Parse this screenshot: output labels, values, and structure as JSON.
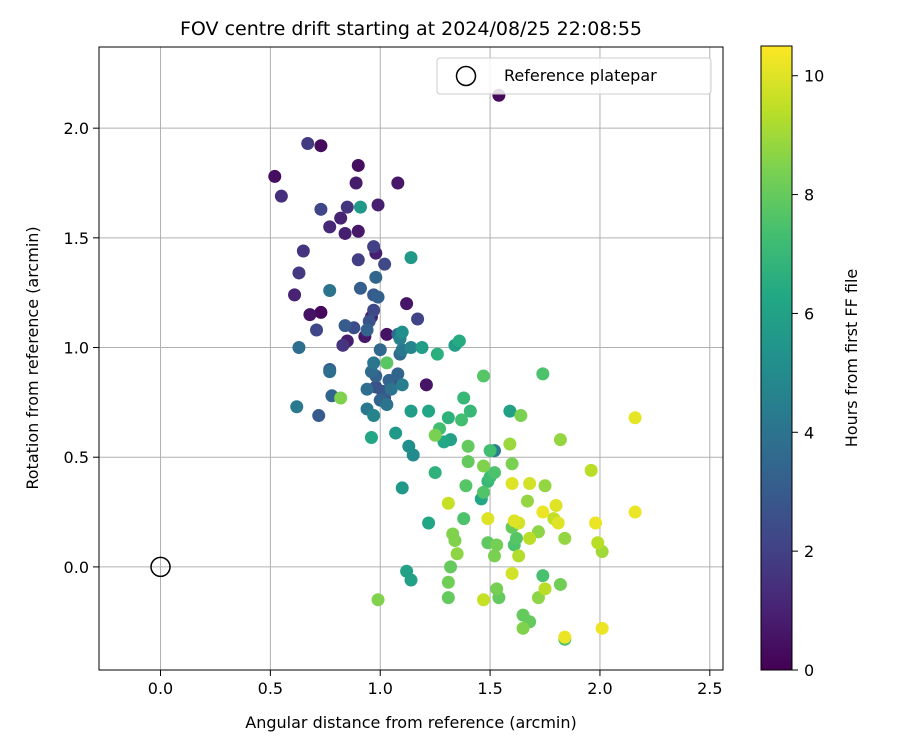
{
  "chart_data": {
    "type": "scatter",
    "title": "FOV centre drift starting at 2024/08/25 22:08:55",
    "xlabel": "Angular distance from reference (arcmin)",
    "ylabel": "Rotation from reference (arcmin)",
    "xlim": [
      -0.28,
      2.56
    ],
    "ylim": [
      -0.47,
      2.37
    ],
    "xticks": [
      0.0,
      0.5,
      1.0,
      1.5,
      2.0,
      2.5
    ],
    "xtick_labels": [
      "0.0",
      "0.5",
      "1.0",
      "1.5",
      "2.0",
      "2.5"
    ],
    "yticks": [
      0.0,
      0.5,
      1.0,
      1.5,
      2.0
    ],
    "ytick_labels": [
      "0.0",
      "0.5",
      "1.0",
      "1.5",
      "2.0"
    ],
    "grid": true,
    "legend": {
      "placement": "top-right",
      "entries": [
        "Reference platepar"
      ]
    },
    "reference_point": {
      "x": 0.0,
      "y": 0.0,
      "label": "Reference platepar"
    },
    "colorbar": {
      "label": "Hours from first FF file",
      "colormap": "viridis",
      "range": [
        0,
        10.5
      ],
      "ticks": [
        0,
        2,
        4,
        6,
        8,
        10
      ],
      "tick_labels": [
        "0",
        "2",
        "4",
        "6",
        "8",
        "10"
      ]
    },
    "points": [
      {
        "x": 0.52,
        "y": 1.78,
        "c": 0.4
      },
      {
        "x": 0.55,
        "y": 1.69,
        "c": 1.4
      },
      {
        "x": 0.67,
        "y": 1.93,
        "c": 1.8
      },
      {
        "x": 0.73,
        "y": 1.92,
        "c": 0.3
      },
      {
        "x": 0.9,
        "y": 1.83,
        "c": 0.4
      },
      {
        "x": 0.89,
        "y": 1.75,
        "c": 0.8
      },
      {
        "x": 1.08,
        "y": 1.75,
        "c": 0.7
      },
      {
        "x": 0.73,
        "y": 1.63,
        "c": 2.2
      },
      {
        "x": 0.85,
        "y": 1.64,
        "c": 1.6
      },
      {
        "x": 0.91,
        "y": 1.64,
        "c": 5.6
      },
      {
        "x": 0.99,
        "y": 1.65,
        "c": 0.9
      },
      {
        "x": 0.82,
        "y": 1.59,
        "c": 1.0
      },
      {
        "x": 0.77,
        "y": 1.55,
        "c": 1.2
      },
      {
        "x": 0.84,
        "y": 1.52,
        "c": 0.9
      },
      {
        "x": 0.9,
        "y": 1.53,
        "c": 0.7
      },
      {
        "x": 0.97,
        "y": 1.46,
        "c": 2.0
      },
      {
        "x": 0.98,
        "y": 1.43,
        "c": 0.9
      },
      {
        "x": 1.02,
        "y": 1.38,
        "c": 2.3
      },
      {
        "x": 1.14,
        "y": 1.41,
        "c": 5.6
      },
      {
        "x": 0.65,
        "y": 1.44,
        "c": 1.6
      },
      {
        "x": 0.9,
        "y": 1.4,
        "c": 1.9
      },
      {
        "x": 0.63,
        "y": 1.34,
        "c": 1.7
      },
      {
        "x": 0.98,
        "y": 1.32,
        "c": 3.5
      },
      {
        "x": 0.91,
        "y": 1.27,
        "c": 3.1
      },
      {
        "x": 0.77,
        "y": 1.26,
        "c": 4.0
      },
      {
        "x": 0.61,
        "y": 1.24,
        "c": 1.0
      },
      {
        "x": 0.97,
        "y": 1.24,
        "c": 3.0
      },
      {
        "x": 0.99,
        "y": 1.23,
        "c": 3.2
      },
      {
        "x": 0.73,
        "y": 1.16,
        "c": 0.2
      },
      {
        "x": 0.68,
        "y": 1.15,
        "c": 0.5
      },
      {
        "x": 0.97,
        "y": 1.17,
        "c": 2.3
      },
      {
        "x": 1.12,
        "y": 1.2,
        "c": 0.6
      },
      {
        "x": 0.96,
        "y": 1.14,
        "c": 0.8
      },
      {
        "x": 1.17,
        "y": 1.13,
        "c": 2.1
      },
      {
        "x": 0.71,
        "y": 1.08,
        "c": 2.2
      },
      {
        "x": 0.84,
        "y": 1.1,
        "c": 3.0
      },
      {
        "x": 0.88,
        "y": 1.09,
        "c": 2.5
      },
      {
        "x": 0.93,
        "y": 1.05,
        "c": 0.7
      },
      {
        "x": 0.94,
        "y": 1.08,
        "c": 3.3
      },
      {
        "x": 1.03,
        "y": 1.06,
        "c": 0.5
      },
      {
        "x": 1.08,
        "y": 1.06,
        "c": 3.7
      },
      {
        "x": 1.1,
        "y": 1.07,
        "c": 5.2
      },
      {
        "x": 1.09,
        "y": 1.04,
        "c": 4.6
      },
      {
        "x": 0.85,
        "y": 1.03,
        "c": 0.8
      },
      {
        "x": 0.83,
        "y": 1.01,
        "c": 1.6
      },
      {
        "x": 0.63,
        "y": 1.0,
        "c": 3.8
      },
      {
        "x": 1.14,
        "y": 1.0,
        "c": 4.8
      },
      {
        "x": 1.19,
        "y": 1.0,
        "c": 5.8
      },
      {
        "x": 1.09,
        "y": 0.97,
        "c": 3.6
      },
      {
        "x": 1.1,
        "y": 0.99,
        "c": 4.2
      },
      {
        "x": 1.26,
        "y": 0.97,
        "c": 6.6
      },
      {
        "x": 1.34,
        "y": 1.01,
        "c": 5.8
      },
      {
        "x": 1.36,
        "y": 1.03,
        "c": 6.4
      },
      {
        "x": 0.97,
        "y": 0.93,
        "c": 4.1
      },
      {
        "x": 1.03,
        "y": 0.93,
        "c": 7.8
      },
      {
        "x": 0.77,
        "y": 0.89,
        "c": 3.8
      },
      {
        "x": 0.77,
        "y": 0.9,
        "c": 3.0
      },
      {
        "x": 0.96,
        "y": 0.89,
        "c": 3.6
      },
      {
        "x": 0.98,
        "y": 0.87,
        "c": 3.3
      },
      {
        "x": 1.04,
        "y": 0.85,
        "c": 3.4
      },
      {
        "x": 1.07,
        "y": 0.84,
        "c": 2.0
      },
      {
        "x": 1.08,
        "y": 0.88,
        "c": 3.4
      },
      {
        "x": 1.1,
        "y": 0.83,
        "c": 4.4
      },
      {
        "x": 1.21,
        "y": 0.83,
        "c": 0.6
      },
      {
        "x": 1.47,
        "y": 0.87,
        "c": 7.7
      },
      {
        "x": 1.74,
        "y": 0.88,
        "c": 7.5
      },
      {
        "x": 0.94,
        "y": 0.81,
        "c": 3.8
      },
      {
        "x": 0.98,
        "y": 0.82,
        "c": 2.6
      },
      {
        "x": 1.01,
        "y": 0.8,
        "c": 2.8
      },
      {
        "x": 1.05,
        "y": 0.81,
        "c": 4.0
      },
      {
        "x": 0.78,
        "y": 0.78,
        "c": 3.4
      },
      {
        "x": 0.82,
        "y": 0.77,
        "c": 8.5
      },
      {
        "x": 1.0,
        "y": 0.76,
        "c": 3.4
      },
      {
        "x": 1.03,
        "y": 0.74,
        "c": 4.0
      },
      {
        "x": 0.94,
        "y": 0.72,
        "c": 4.2
      },
      {
        "x": 0.62,
        "y": 0.73,
        "c": 4.3
      },
      {
        "x": 0.72,
        "y": 0.69,
        "c": 3.0
      },
      {
        "x": 0.97,
        "y": 0.69,
        "c": 4.7
      },
      {
        "x": 1.14,
        "y": 0.71,
        "c": 5.8
      },
      {
        "x": 1.22,
        "y": 0.71,
        "c": 6.2
      },
      {
        "x": 1.31,
        "y": 0.68,
        "c": 6.7
      },
      {
        "x": 1.37,
        "y": 0.67,
        "c": 7.3
      },
      {
        "x": 1.41,
        "y": 0.71,
        "c": 7.0
      },
      {
        "x": 1.38,
        "y": 0.77,
        "c": 7.0
      },
      {
        "x": 1.59,
        "y": 0.71,
        "c": 6.0
      },
      {
        "x": 1.64,
        "y": 0.69,
        "c": 8.4
      },
      {
        "x": 1.27,
        "y": 0.63,
        "c": 7.3
      },
      {
        "x": 1.25,
        "y": 0.6,
        "c": 8.4
      },
      {
        "x": 0.96,
        "y": 0.59,
        "c": 6.2
      },
      {
        "x": 1.07,
        "y": 0.61,
        "c": 5.6
      },
      {
        "x": 1.29,
        "y": 0.57,
        "c": 6.3
      },
      {
        "x": 1.32,
        "y": 0.58,
        "c": 6.0
      },
      {
        "x": 1.4,
        "y": 0.55,
        "c": 8.0
      },
      {
        "x": 1.13,
        "y": 0.55,
        "c": 5.2
      },
      {
        "x": 1.15,
        "y": 0.51,
        "c": 5.0
      },
      {
        "x": 1.4,
        "y": 0.48,
        "c": 8.0
      },
      {
        "x": 1.5,
        "y": 0.53,
        "c": 7.3
      },
      {
        "x": 1.52,
        "y": 0.53,
        "c": 4.5
      },
      {
        "x": 1.47,
        "y": 0.46,
        "c": 8.5
      },
      {
        "x": 1.52,
        "y": 0.43,
        "c": 7.5
      },
      {
        "x": 1.6,
        "y": 0.47,
        "c": 8.4
      },
      {
        "x": 1.59,
        "y": 0.56,
        "c": 8.9
      },
      {
        "x": 1.82,
        "y": 0.58,
        "c": 8.8
      },
      {
        "x": 1.96,
        "y": 0.44,
        "c": 9.4
      },
      {
        "x": 2.16,
        "y": 0.68,
        "c": 10.1
      },
      {
        "x": 1.25,
        "y": 0.43,
        "c": 6.7
      },
      {
        "x": 1.5,
        "y": 0.41,
        "c": 7.2
      },
      {
        "x": 1.49,
        "y": 0.39,
        "c": 7.0
      },
      {
        "x": 1.39,
        "y": 0.37,
        "c": 7.7
      },
      {
        "x": 1.6,
        "y": 0.38,
        "c": 10.0
      },
      {
        "x": 1.68,
        "y": 0.38,
        "c": 9.8
      },
      {
        "x": 1.75,
        "y": 0.37,
        "c": 8.8
      },
      {
        "x": 1.1,
        "y": 0.36,
        "c": 5.6
      },
      {
        "x": 1.47,
        "y": 0.34,
        "c": 7.6
      },
      {
        "x": 1.46,
        "y": 0.31,
        "c": 6.2
      },
      {
        "x": 1.31,
        "y": 0.29,
        "c": 9.6
      },
      {
        "x": 1.67,
        "y": 0.3,
        "c": 8.8
      },
      {
        "x": 1.8,
        "y": 0.28,
        "c": 10.0
      },
      {
        "x": 1.74,
        "y": 0.25,
        "c": 10.2
      },
      {
        "x": 2.16,
        "y": 0.25,
        "c": 10.2
      },
      {
        "x": 1.49,
        "y": 0.22,
        "c": 10.0
      },
      {
        "x": 1.38,
        "y": 0.22,
        "c": 7.5
      },
      {
        "x": 1.61,
        "y": 0.21,
        "c": 10.0
      },
      {
        "x": 1.63,
        "y": 0.2,
        "c": 9.8
      },
      {
        "x": 1.79,
        "y": 0.22,
        "c": 9.5
      },
      {
        "x": 1.81,
        "y": 0.2,
        "c": 10.0
      },
      {
        "x": 1.98,
        "y": 0.2,
        "c": 10.2
      },
      {
        "x": 1.22,
        "y": 0.2,
        "c": 6.2
      },
      {
        "x": 1.6,
        "y": 0.18,
        "c": 8.0
      },
      {
        "x": 1.72,
        "y": 0.16,
        "c": 8.7
      },
      {
        "x": 1.33,
        "y": 0.15,
        "c": 8.5
      },
      {
        "x": 1.34,
        "y": 0.12,
        "c": 8.5
      },
      {
        "x": 1.49,
        "y": 0.11,
        "c": 7.9
      },
      {
        "x": 1.53,
        "y": 0.1,
        "c": 8.3
      },
      {
        "x": 1.61,
        "y": 0.1,
        "c": 7.5
      },
      {
        "x": 1.62,
        "y": 0.13,
        "c": 7.7
      },
      {
        "x": 1.68,
        "y": 0.13,
        "c": 9.4
      },
      {
        "x": 1.84,
        "y": 0.13,
        "c": 8.8
      },
      {
        "x": 1.99,
        "y": 0.11,
        "c": 9.4
      },
      {
        "x": 2.01,
        "y": 0.07,
        "c": 9.0
      },
      {
        "x": 1.35,
        "y": 0.06,
        "c": 8.7
      },
      {
        "x": 1.52,
        "y": 0.05,
        "c": 8.4
      },
      {
        "x": 1.63,
        "y": 0.05,
        "c": 9.3
      },
      {
        "x": 1.32,
        "y": 0.0,
        "c": 8.0
      },
      {
        "x": 1.12,
        "y": -0.02,
        "c": 6.0
      },
      {
        "x": 1.14,
        "y": -0.06,
        "c": 6.0
      },
      {
        "x": 1.6,
        "y": -0.03,
        "c": 9.8
      },
      {
        "x": 1.74,
        "y": -0.04,
        "c": 7.4
      },
      {
        "x": 1.31,
        "y": -0.07,
        "c": 8.2
      },
      {
        "x": 1.53,
        "y": -0.1,
        "c": 8.3
      },
      {
        "x": 1.75,
        "y": -0.1,
        "c": 9.4
      },
      {
        "x": 1.82,
        "y": -0.08,
        "c": 8.2
      },
      {
        "x": 0.99,
        "y": -0.15,
        "c": 8.5
      },
      {
        "x": 1.31,
        "y": -0.14,
        "c": 8.0
      },
      {
        "x": 1.47,
        "y": -0.15,
        "c": 9.6
      },
      {
        "x": 1.54,
        "y": -0.14,
        "c": 8.0
      },
      {
        "x": 1.72,
        "y": -0.14,
        "c": 8.7
      },
      {
        "x": 1.65,
        "y": -0.22,
        "c": 8.0
      },
      {
        "x": 1.68,
        "y": -0.25,
        "c": 8.0
      },
      {
        "x": 1.65,
        "y": -0.28,
        "c": 8.5
      },
      {
        "x": 1.84,
        "y": -0.33,
        "c": 7.5
      },
      {
        "x": 1.84,
        "y": -0.32,
        "c": 10.2
      },
      {
        "x": 2.01,
        "y": -0.28,
        "c": 10.2
      },
      {
        "x": 1.54,
        "y": 2.15,
        "c": 0.2
      },
      {
        "x": 1.0,
        "y": 0.99,
        "c": 3.5
      },
      {
        "x": 0.95,
        "y": 1.12,
        "c": 2.7
      },
      {
        "x": 1.02,
        "y": 0.77,
        "c": 2.9
      }
    ]
  }
}
